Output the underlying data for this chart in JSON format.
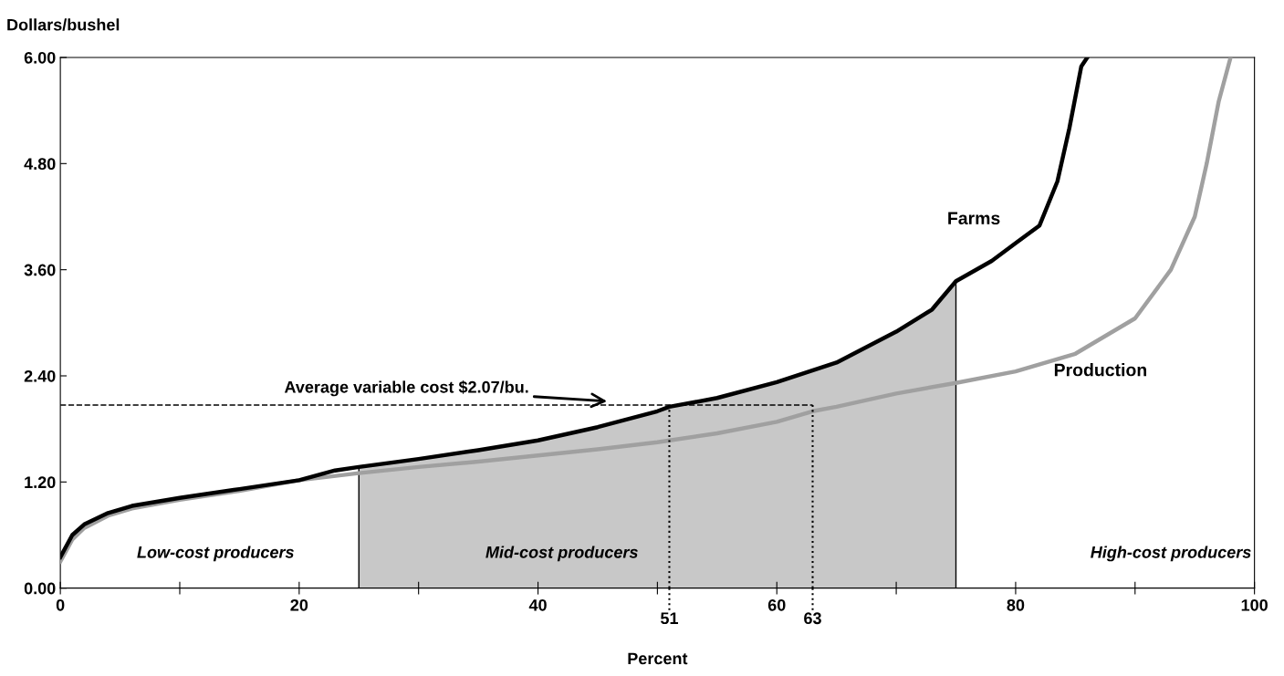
{
  "chart_data": {
    "type": "line",
    "xlabel": "Percent",
    "ylabel": "Dollars/bushel",
    "xlim": [
      0,
      100
    ],
    "ylim": [
      0,
      6
    ],
    "xticks": [
      0,
      {
        "value": 10,
        "label": null
      },
      20,
      {
        "value": 30,
        "label": null
      },
      40,
      {
        "value": 50,
        "label": null
      },
      60,
      {
        "value": 70,
        "label": null
      },
      80,
      {
        "value": 90,
        "label": null
      },
      100
    ],
    "yticks": [
      {
        "value": 0,
        "label": "0.00"
      },
      {
        "value": 1.2,
        "label": "1.20"
      },
      {
        "value": 2.4,
        "label": "2.40"
      },
      {
        "value": 3.6,
        "label": "3.60"
      },
      {
        "value": 4.8,
        "label": "4.80"
      },
      {
        "value": 6,
        "label": "6.00"
      }
    ],
    "grid": false,
    "legend": false,
    "marker": "none",
    "line_style": "solid",
    "series": [
      {
        "type": "area",
        "color": "#c8c8c8",
        "x": [
          25,
          30,
          35,
          40,
          45,
          50,
          51,
          55,
          60,
          65,
          70,
          73,
          75
        ],
        "values": [
          1.37,
          1.46,
          1.56,
          1.67,
          1.82,
          2.0,
          2.05,
          2.15,
          2.33,
          2.55,
          2.9,
          3.15,
          3.47
        ]
      },
      {
        "name": "Farms",
        "color": "#000000",
        "x": [
          0,
          1,
          2,
          4,
          6,
          10,
          15,
          20,
          23,
          25,
          30,
          35,
          40,
          45,
          50,
          51,
          55,
          60,
          65,
          70,
          73,
          75,
          78,
          80,
          82,
          83.5,
          84.5,
          85.5,
          86
        ],
        "values": [
          0.35,
          0.6,
          0.72,
          0.85,
          0.93,
          1.02,
          1.12,
          1.22,
          1.33,
          1.37,
          1.46,
          1.56,
          1.67,
          1.82,
          2.0,
          2.05,
          2.15,
          2.33,
          2.55,
          2.9,
          3.15,
          3.47,
          3.7,
          3.9,
          4.1,
          4.6,
          5.2,
          5.9,
          6.0
        ]
      },
      {
        "name": "Production",
        "color": "#a0a0a0",
        "x": [
          0,
          1,
          2,
          4,
          6,
          10,
          15,
          20,
          25,
          30,
          35,
          40,
          45,
          50,
          55,
          60,
          63,
          65,
          70,
          75,
          80,
          85,
          90,
          93,
          95,
          96,
          97,
          98
        ],
        "values": [
          0.3,
          0.55,
          0.68,
          0.82,
          0.9,
          1.0,
          1.1,
          1.22,
          1.3,
          1.37,
          1.43,
          1.5,
          1.57,
          1.65,
          1.75,
          1.88,
          2.0,
          2.05,
          2.2,
          2.32,
          2.45,
          2.65,
          3.05,
          3.6,
          4.2,
          4.8,
          5.5,
          6.0
        ]
      }
    ],
    "ref_lines": [
      {
        "axis": "y",
        "value": 2.07,
        "label": "Average variable cost $2.07/bu.",
        "line_style": "dashed",
        "color": "#000000"
      },
      {
        "axis": "x",
        "value": 51,
        "label": "51",
        "line_style": "dotted",
        "color": "#000000"
      },
      {
        "axis": "x",
        "value": 63,
        "label": "63",
        "line_style": "dotted",
        "color": "#000000"
      }
    ],
    "annotations": [
      "Low-cost producers",
      "Mid-cost producers",
      "High-cost producers"
    ]
  }
}
